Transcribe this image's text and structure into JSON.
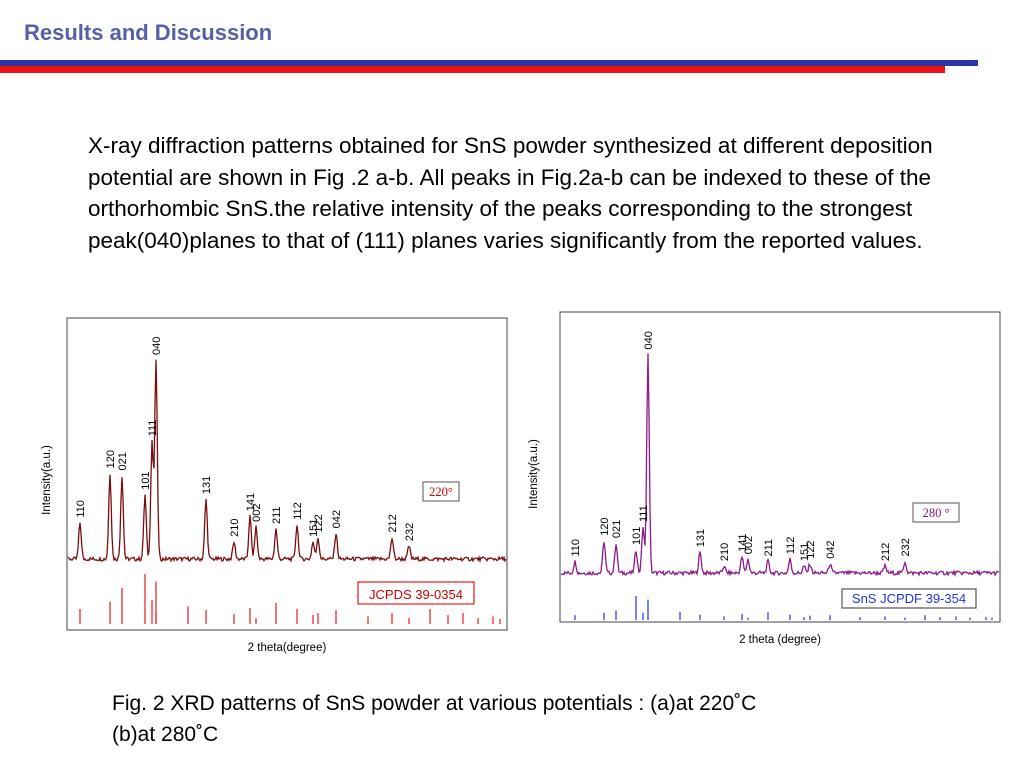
{
  "slide": {
    "title": "Results and Discussion",
    "colors": {
      "title": "#5560a8",
      "rule_blue": "#2b35a8",
      "rule_red": "#ee1111"
    },
    "body": "X-ray diffraction patterns obtained for SnS powder synthesized at different deposition potential are shown in Fig .2 a-b. All peaks in Fig.2a-b can be indexed to these of the orthorhombic SnS.the relative intensity of the peaks corresponding to the strongest peak(040)planes to that of (111) planes varies significantly from the reported values.",
    "caption_line1": "Fig. 2 XRD patterns of SnS powder at various potentials :  (a)at 220˚C",
    "caption_line2": "(b)at 280˚C"
  },
  "chart_data": [
    {
      "type": "line",
      "title": "",
      "xlabel": "2 theta(degree)",
      "ylabel": "Intensity(a.u.)",
      "temperature_label": "220°",
      "reference_label": "JCPDS 39-0354",
      "colors": {
        "pattern": "#7a0e0e",
        "reference": "#e81a1a",
        "temp_text": "#cc0000",
        "ref_text": "#cc0000",
        "ref_box": "#e81a1a"
      },
      "peaks": [
        {
          "label": "110",
          "height": 0.17
        },
        {
          "label": "120",
          "height": 0.4
        },
        {
          "label": "021",
          "height": 0.39
        },
        {
          "label": "101",
          "height": 0.3
        },
        {
          "label": "111",
          "height": 0.55
        },
        {
          "label": "040",
          "height": 0.93
        },
        {
          "label": "131",
          "height": 0.28
        },
        {
          "label": "210",
          "height": 0.08
        },
        {
          "label": "141",
          "height": 0.2
        },
        {
          "label": "002",
          "height": 0.15
        },
        {
          "label": "211",
          "height": 0.14
        },
        {
          "label": "112",
          "height": 0.16
        },
        {
          "label": "151",
          "height": 0.08
        },
        {
          "label": "122",
          "height": 0.1
        },
        {
          "label": "042",
          "height": 0.12
        },
        {
          "label": "212",
          "height": 0.1
        },
        {
          "label": "232",
          "height": 0.06
        }
      ],
      "reference_lines": [
        0.3,
        0.45,
        0.72,
        1.0,
        0.48,
        0.2,
        0.85,
        0.35,
        0.28,
        0.2,
        0.32,
        0.12,
        0.42,
        0.3,
        0.18,
        0.22,
        0.28,
        0.15,
        0.22,
        0.12,
        0.3,
        0.18,
        0.22,
        0.12,
        0.15,
        0.1
      ]
    },
    {
      "type": "line",
      "title": "",
      "xlabel": "2 theta (degree)",
      "ylabel": "Intensity(a.u.)",
      "temperature_label": "280 °",
      "reference_label": "SnS  JCPDF 39-354",
      "colors": {
        "pattern": "#8b1a8b",
        "reference": "#2233dd",
        "temp_text": "#7a1a7a",
        "ref_text": "#2233dd",
        "ref_box": "#555555"
      },
      "peaks": [
        {
          "label": "110",
          "height": 0.05
        },
        {
          "label": "120",
          "height": 0.14
        },
        {
          "label": "021",
          "height": 0.13
        },
        {
          "label": "101",
          "height": 0.1
        },
        {
          "label": "111",
          "height": 0.2
        },
        {
          "label": "040",
          "height": 0.95
        },
        {
          "label": "131",
          "height": 0.09
        },
        {
          "label": "210",
          "height": 0.03
        },
        {
          "label": "141",
          "height": 0.07
        },
        {
          "label": "002",
          "height": 0.06
        },
        {
          "label": "211",
          "height": 0.05
        },
        {
          "label": "112",
          "height": 0.06
        },
        {
          "label": "151",
          "height": 0.03
        },
        {
          "label": "122",
          "height": 0.04
        },
        {
          "label": "042",
          "height": 0.04
        },
        {
          "label": "212",
          "height": 0.03
        },
        {
          "label": "232",
          "height": 0.05
        }
      ],
      "reference_lines": [
        0.2,
        0.3,
        0.4,
        1.0,
        0.3,
        0.12,
        0.85,
        0.35,
        0.22,
        0.15,
        0.25,
        0.1,
        0.32,
        0.22,
        0.12,
        0.18,
        0.2,
        0.12,
        0.15,
        0.1,
        0.2,
        0.12,
        0.15,
        0.1,
        0.12,
        0.1
      ]
    }
  ]
}
